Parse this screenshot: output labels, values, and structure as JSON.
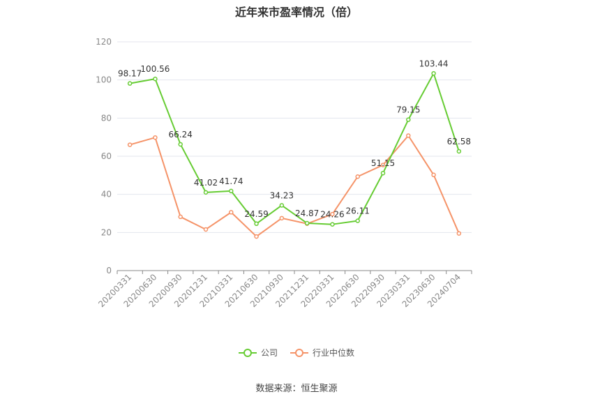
{
  "chart_data": {
    "type": "line",
    "title": "近年来市盈率情况（倍）",
    "categories": [
      "20200331",
      "20200630",
      "20200930",
      "20201231",
      "20210331",
      "20210630",
      "20210930",
      "20211231",
      "20220331",
      "20220630",
      "20220930",
      "20230331",
      "20230630",
      "20240704"
    ],
    "series": [
      {
        "name": "公司",
        "color": "#66cc33",
        "values": [
          98.17,
          100.56,
          66.24,
          41.02,
          41.74,
          24.59,
          34.23,
          24.87,
          24.26,
          26.11,
          51.15,
          79.15,
          103.44,
          62.58
        ],
        "labels": [
          "98.17",
          "100.56",
          "66.24",
          "41.02",
          "41.74",
          "24.59",
          "34.23",
          "24.87",
          "24.26",
          "26.11",
          "51.15",
          "79.15",
          "103.44",
          "62.58"
        ]
      },
      {
        "name": "行业中位数",
        "color": "#f59368",
        "values": [
          66.0,
          69.8,
          28.2,
          21.6,
          30.6,
          17.9,
          27.5,
          24.6,
          29.6,
          49.3,
          55.4,
          70.8,
          50.2,
          19.5
        ]
      }
    ],
    "ylim": [
      0,
      120
    ],
    "yticks": [
      0,
      20,
      40,
      60,
      80,
      100,
      120
    ],
    "grid": true,
    "legend": "bottom-center"
  },
  "source": "数据来源：恒生聚源"
}
